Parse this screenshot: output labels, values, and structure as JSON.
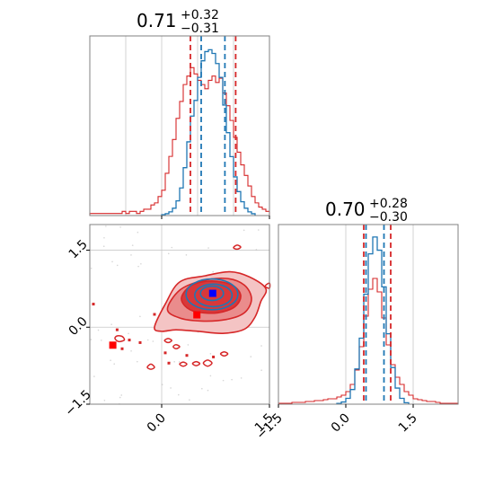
{
  "colors": {
    "red": "#d62728",
    "blue": "#1f77b4",
    "grid": "#c8c8c8",
    "frame": "#808080"
  },
  "chart_data": [
    {
      "type": "histogram",
      "panel": "top-left",
      "title": {
        "main": "0.71",
        "plus": "+0.32",
        "minus": "−0.31"
      },
      "xlim": [
        -1.0,
        1.5
      ],
      "grid": true,
      "quantile_lines_red": [
        0.4,
        1.03
      ],
      "quantile_lines_blue": [
        0.55,
        0.88
      ],
      "red_hist": {
        "edges": [
          -1.0,
          -0.95,
          -0.9,
          -0.85,
          -0.8,
          -0.75,
          -0.7,
          -0.65,
          -0.6,
          -0.55,
          -0.5,
          -0.45,
          -0.4,
          -0.35,
          -0.3,
          -0.25,
          -0.2,
          -0.15,
          -0.1,
          -0.05,
          0.0,
          0.05,
          0.1,
          0.15,
          0.2,
          0.25,
          0.3,
          0.35,
          0.4,
          0.45,
          0.5,
          0.55,
          0.6,
          0.65,
          0.7,
          0.75,
          0.8,
          0.85,
          0.9,
          0.95,
          1.0,
          1.05,
          1.1,
          1.15,
          1.2,
          1.25,
          1.3,
          1.35,
          1.4,
          1.45,
          1.5
        ],
        "counts": [
          1,
          1,
          1,
          1,
          1,
          1,
          1,
          1,
          1,
          2,
          1,
          2,
          2,
          1,
          2,
          3,
          3,
          5,
          6,
          9,
          12,
          20,
          28,
          36,
          46,
          54,
          62,
          66,
          70,
          67,
          64,
          62,
          60,
          64,
          66,
          63,
          65,
          58,
          52,
          45,
          37,
          30,
          24,
          19,
          14,
          9,
          6,
          4,
          3,
          2
        ]
      },
      "blue_hist": {
        "edges": [
          0.0,
          0.05,
          0.1,
          0.15,
          0.2,
          0.25,
          0.3,
          0.35,
          0.4,
          0.45,
          0.5,
          0.55,
          0.6,
          0.65,
          0.7,
          0.75,
          0.8,
          0.85,
          0.9,
          0.95,
          1.0,
          1.05,
          1.1,
          1.15,
          1.2,
          1.25,
          1.3
        ],
        "counts": [
          1,
          2,
          4,
          8,
          16,
          30,
          52,
          80,
          108,
          125,
          150,
          168,
          178,
          180,
          176,
          165,
          150,
          120,
          90,
          64,
          42,
          26,
          15,
          8,
          4,
          2
        ]
      }
    },
    {
      "type": "contour",
      "panel": "bottom-left",
      "xlim": [
        -1.0,
        1.5
      ],
      "ylim": [
        -1.5,
        2.0
      ],
      "xticks": [
        "0.0",
        "1.5"
      ],
      "yticks": [
        "−1.5",
        "0.0",
        "1.5"
      ],
      "grid": true,
      "red_contours_filled": [
        {
          "level": "outer",
          "points": [
            [
              -0.1,
              0.0
            ],
            [
              0.05,
              0.45
            ],
            [
              0.25,
              0.88
            ],
            [
              0.6,
              1.0
            ],
            [
              0.95,
              1.08
            ],
            [
              1.22,
              0.98
            ],
            [
              1.45,
              0.75
            ],
            [
              1.38,
              0.5
            ],
            [
              1.3,
              0.2
            ],
            [
              1.15,
              -0.04
            ],
            [
              0.85,
              -0.12
            ],
            [
              0.5,
              -0.08
            ],
            [
              0.2,
              -0.05
            ],
            [
              0.0,
              -0.08
            ]
          ]
        },
        {
          "level": "middle",
          "points": [
            [
              0.08,
              0.35
            ],
            [
              0.25,
              0.72
            ],
            [
              0.55,
              0.9
            ],
            [
              0.9,
              0.95
            ],
            [
              1.15,
              0.82
            ],
            [
              1.25,
              0.55
            ],
            [
              1.15,
              0.28
            ],
            [
              0.9,
              0.15
            ],
            [
              0.55,
              0.12
            ],
            [
              0.25,
              0.18
            ]
          ]
        },
        {
          "level": "inner",
          "points": [
            [
              0.28,
              0.6
            ],
            [
              0.42,
              0.82
            ],
            [
              0.7,
              0.9
            ],
            [
              0.98,
              0.82
            ],
            [
              1.1,
              0.62
            ],
            [
              1.02,
              0.4
            ],
            [
              0.78,
              0.28
            ],
            [
              0.48,
              0.3
            ],
            [
              0.32,
              0.42
            ]
          ]
        }
      ],
      "red_contours_outline": [
        {
          "points": [
            [
              -0.65,
              -0.22
            ],
            [
              -0.6,
              -0.28
            ],
            [
              -0.52,
              -0.25
            ],
            [
              -0.55,
              -0.18
            ],
            [
              -0.62,
              -0.17
            ]
          ]
        },
        {
          "points": [
            [
              -0.2,
              -0.78
            ],
            [
              -0.15,
              -0.82
            ],
            [
              -0.1,
              -0.78
            ],
            [
              -0.15,
              -0.72
            ]
          ]
        },
        {
          "points": [
            [
              0.16,
              -0.38
            ],
            [
              0.2,
              -0.42
            ],
            [
              0.25,
              -0.38
            ],
            [
              0.2,
              -0.34
            ]
          ]
        },
        {
          "points": [
            [
              0.25,
              -0.72
            ],
            [
              0.3,
              -0.76
            ],
            [
              0.35,
              -0.72
            ],
            [
              0.3,
              -0.68
            ]
          ]
        },
        {
          "points": [
            [
              0.43,
              -0.71
            ],
            [
              0.48,
              -0.75
            ],
            [
              0.53,
              -0.71
            ],
            [
              0.48,
              -0.67
            ]
          ]
        },
        {
          "points": [
            [
              0.58,
              -0.7
            ],
            [
              0.64,
              -0.76
            ],
            [
              0.7,
              -0.7
            ],
            [
              0.64,
              -0.64
            ]
          ]
        },
        {
          "points": [
            [
              0.82,
              -0.52
            ],
            [
              0.87,
              -0.56
            ],
            [
              0.92,
              -0.52
            ],
            [
              0.87,
              -0.48
            ]
          ]
        },
        {
          "points": [
            [
              0.04,
              -0.26
            ],
            [
              0.09,
              -0.3
            ],
            [
              0.14,
              -0.26
            ],
            [
              0.09,
              -0.22
            ]
          ]
        },
        {
          "points": [
            [
              1.0,
              1.55
            ],
            [
              1.05,
              1.52
            ],
            [
              1.1,
              1.56
            ],
            [
              1.05,
              1.6
            ]
          ]
        },
        {
          "points": [
            [
              1.44,
              0.8
            ],
            [
              1.5,
              0.76
            ],
            [
              1.5,
              0.86
            ]
          ]
        }
      ],
      "red_scatter": [
        [
          -0.95,
          0.45
        ],
        [
          -0.55,
          -0.42
        ],
        [
          -0.45,
          -0.25
        ],
        [
          -0.3,
          -0.3
        ],
        [
          -0.1,
          0.25
        ],
        [
          0.05,
          -0.5
        ],
        [
          0.1,
          -0.7
        ],
        [
          0.35,
          -0.55
        ],
        [
          0.72,
          -0.58
        ],
        [
          -0.62,
          -0.05
        ]
      ],
      "blue_contours": [
        {
          "cx": 0.7,
          "cy": 0.64,
          "rx": 0.36,
          "ry": 0.3
        },
        {
          "cx": 0.72,
          "cy": 0.62,
          "rx": 0.26,
          "ry": 0.22
        },
        {
          "cx": 0.7,
          "cy": 0.66,
          "rx": 0.16,
          "ry": 0.14
        }
      ],
      "markers": [
        {
          "name": "red-square-1",
          "x": -0.68,
          "y": -0.35,
          "color": "#ff0000"
        },
        {
          "name": "red-square-2",
          "x": 0.49,
          "y": 0.24,
          "color": "#ff0000"
        },
        {
          "name": "blue-square",
          "x": 0.71,
          "y": 0.66,
          "color": "#0000ff"
        }
      ]
    },
    {
      "type": "histogram",
      "panel": "bottom-right",
      "title": {
        "main": "0.70",
        "plus": "+0.28",
        "minus": "−0.30"
      },
      "xlim": [
        -1.5,
        2.5
      ],
      "xticks": [
        "−1.5",
        "0.0",
        "1.5"
      ],
      "grid": true,
      "quantile_lines_red": [
        0.4,
        1.0
      ],
      "quantile_lines_blue": [
        0.45,
        0.85
      ],
      "red_hist": {
        "edges": [
          -1.5,
          -1.4,
          -1.3,
          -1.2,
          -1.1,
          -1.0,
          -0.9,
          -0.8,
          -0.7,
          -0.6,
          -0.5,
          -0.4,
          -0.3,
          -0.2,
          -0.1,
          0.0,
          0.1,
          0.2,
          0.3,
          0.4,
          0.5,
          0.6,
          0.7,
          0.8,
          0.9,
          1.0,
          1.1,
          1.2,
          1.3,
          1.4,
          1.5,
          1.6,
          1.7,
          1.8,
          1.9,
          2.0,
          2.1,
          2.2,
          2.3,
          2.4,
          2.5
        ],
        "counts": [
          1,
          1,
          1,
          2,
          2,
          2,
          3,
          3,
          4,
          4,
          5,
          6,
          6,
          8,
          10,
          14,
          22,
          38,
          64,
          98,
          128,
          140,
          125,
          96,
          66,
          44,
          30,
          22,
          14,
          10,
          6,
          5,
          4,
          3,
          3,
          2,
          1,
          1,
          1,
          1
        ]
      },
      "blue_hist": {
        "edges": [
          -0.2,
          -0.1,
          0.0,
          0.1,
          0.2,
          0.3,
          0.4,
          0.5,
          0.6,
          0.7,
          0.8,
          0.9,
          1.0,
          1.1,
          1.2,
          1.3,
          1.4
        ],
        "counts": [
          1,
          3,
          8,
          20,
          48,
          90,
          150,
          205,
          228,
          210,
          160,
          96,
          50,
          22,
          8,
          2
        ]
      }
    }
  ]
}
